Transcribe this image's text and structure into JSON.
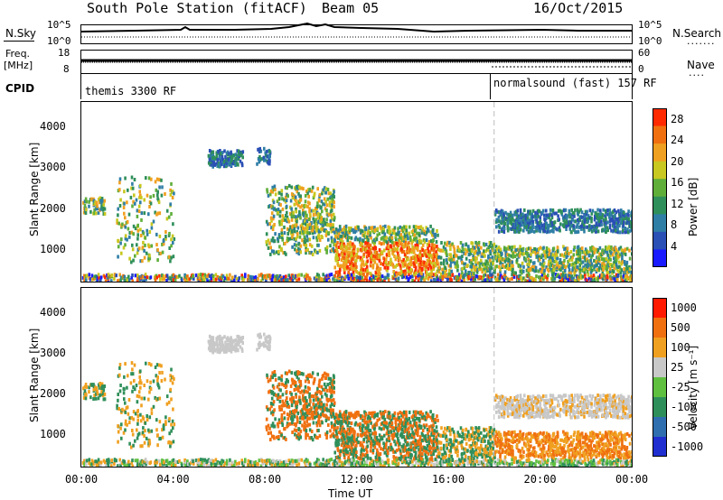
{
  "header": {
    "station": "South Pole Station (fitACF)",
    "beam": "Beam 05",
    "date": "16/Oct/2015"
  },
  "strip_labels": {
    "nsky": "N.Sky",
    "nsearch": "N.Search",
    "freq_top": "Freq.",
    "freq_unit": "[MHz]",
    "nave": "Nave",
    "cpid": "CPID",
    "nsky_ticks": [
      "10^5",
      "10^0"
    ],
    "nsearch_ticks": [
      "10^5",
      "10^0"
    ],
    "freq_ticks": [
      "18",
      "8"
    ],
    "nave_ticks": [
      "60",
      "0"
    ]
  },
  "cpid_segments": [
    {
      "label": "themis 3300 RF",
      "start_hour": 0
    },
    {
      "label": "normalsound (fast) 157 RF",
      "start_hour": 18
    }
  ],
  "chart_data": [
    {
      "type": "heatmap",
      "ylabel": "Slant Range [km]",
      "x_ticks": [
        "00:00",
        "04:00",
        "08:00",
        "12:00",
        "16:00",
        "20:00",
        "00:00"
      ],
      "xlim_hours": [
        0,
        24
      ],
      "y_ticks": [
        1000,
        2000,
        3000,
        4000
      ],
      "ylim": [
        200,
        4600
      ],
      "colorbar": {
        "label": "Power [dB]",
        "ticks": [
          "4",
          "8",
          "12",
          "16",
          "20",
          "24",
          "28"
        ],
        "range": [
          0,
          30
        ],
        "colors": [
          "#1a1aff",
          "#2a4fb5",
          "#2f7ea6",
          "#2f8f5a",
          "#5fae3a",
          "#c8c820",
          "#f0a020",
          "#f07010",
          "#ff2a00"
        ]
      }
    },
    {
      "type": "heatmap",
      "ylabel": "Slant Range [km]",
      "xlabel": "Time UT",
      "x_ticks": [
        "00:00",
        "04:00",
        "08:00",
        "12:00",
        "16:00",
        "20:00",
        "00:00"
      ],
      "xlim_hours": [
        0,
        24
      ],
      "y_ticks": [
        1000,
        2000,
        3000,
        4000
      ],
      "ylim": [
        200,
        4600
      ],
      "colorbar": {
        "label": "Velocity [m s⁻¹]",
        "ticks": [
          "1000",
          "500",
          "100",
          "25",
          "-25",
          "-100",
          "-500",
          "-1000"
        ],
        "colors": [
          "#2030d0",
          "#2f6fb0",
          "#2f8f5a",
          "#5fc040",
          "#c8c8c8",
          "#f0a020",
          "#f07010",
          "#ff1a00"
        ]
      }
    }
  ]
}
